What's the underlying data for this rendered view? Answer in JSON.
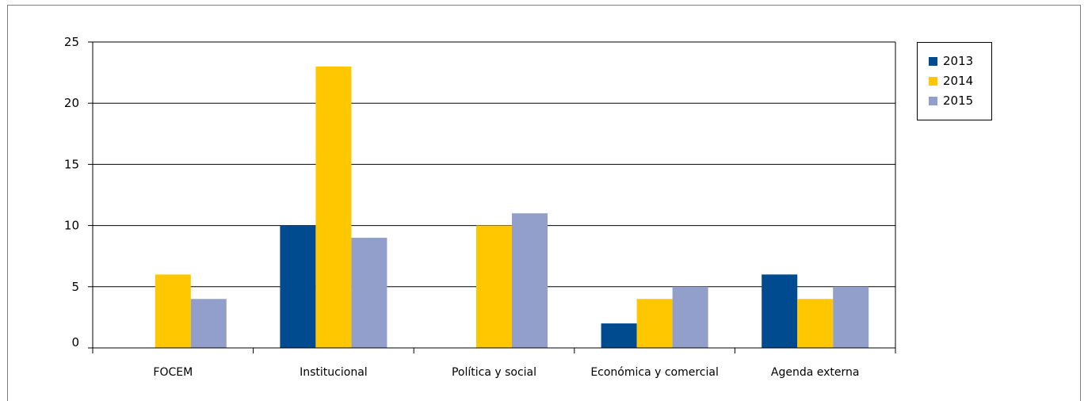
{
  "chart_data": {
    "type": "bar",
    "categories": [
      "FOCEM",
      "Institucional",
      "Política y social",
      "Económica y comercial",
      "Agenda externa"
    ],
    "series": [
      {
        "name": "2013",
        "values": [
          0,
          10,
          0,
          2,
          6
        ],
        "color": "#004A8F"
      },
      {
        "name": "2014",
        "values": [
          6,
          23,
          10,
          4,
          4
        ],
        "color": "#FFC700"
      },
      {
        "name": "2015",
        "values": [
          4,
          9,
          11,
          5,
          5
        ],
        "color": "#929FCB"
      }
    ],
    "ylim": [
      0,
      25
    ],
    "yticks": [
      0,
      5,
      10,
      15,
      20,
      25
    ],
    "grid": true,
    "legend_position": "top-right",
    "title": "",
    "xlabel": "",
    "ylabel": ""
  }
}
